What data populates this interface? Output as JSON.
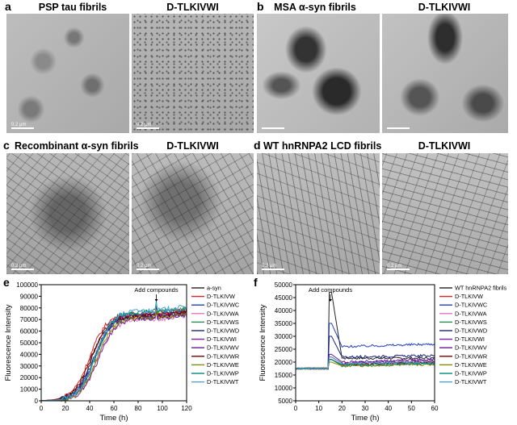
{
  "panels": {
    "a": {
      "letter": "a",
      "titles": [
        "PSP tau fibrils",
        "D-TLKIVWI"
      ]
    },
    "b": {
      "letter": "b",
      "titles": [
        "MSA α-syn fibrils",
        "D-TLKIVWI"
      ]
    },
    "c": {
      "letter": "c",
      "titles": [
        "Recombinant α-syn fibrils",
        "D-TLKIVWI"
      ]
    },
    "d": {
      "letter": "d",
      "titles": [
        "WT hnRNPA2 LCD fibrils",
        "D-TLKIVWI"
      ]
    },
    "e": {
      "letter": "e"
    },
    "f": {
      "letter": "f"
    }
  },
  "scale_label": "0.2 μm",
  "chart_data": [
    {
      "type": "line",
      "panel": "e",
      "xlabel": "Time (h)",
      "ylabel": "Fluorescence Intensity",
      "xlim": [
        0,
        120
      ],
      "ylim": [
        0,
        100000
      ],
      "xticks": [
        0,
        20,
        40,
        60,
        80,
        100,
        120
      ],
      "yticks": [
        0,
        10000,
        20000,
        30000,
        40000,
        50000,
        60000,
        70000,
        80000,
        90000,
        100000
      ],
      "annotation": {
        "text": "Add compounds",
        "x": 95
      },
      "legend_position": "right",
      "series": [
        {
          "name": "a-syn",
          "color": "#222222",
          "mid": 42,
          "plateau": 74000
        },
        {
          "name": "D-TLKIVW",
          "color": "#d62728",
          "mid": 40,
          "plateau": 75000
        },
        {
          "name": "D-TLKIVWC",
          "color": "#1f3fbf",
          "mid": 44,
          "plateau": 73000
        },
        {
          "name": "D-TLKIVWA",
          "color": "#e377c2",
          "mid": 46,
          "plateau": 70000
        },
        {
          "name": "D-TLKIVWS",
          "color": "#2e8b57",
          "mid": 45,
          "plateau": 76000
        },
        {
          "name": "D-TLKIVWD",
          "color": "#1a237e",
          "mid": 43,
          "plateau": 72000
        },
        {
          "name": "D-TLKIVWI",
          "color": "#7b1fa2",
          "mid": 47,
          "plateau": 71000
        },
        {
          "name": "D-TLKIVWV",
          "color": "#6a1b9a",
          "mid": 44,
          "plateau": 74000
        },
        {
          "name": "D-TLKIVWR",
          "color": "#7f0000",
          "mid": 41,
          "plateau": 73000
        },
        {
          "name": "D-TLKIVWE",
          "color": "#8b8b00",
          "mid": 46,
          "plateau": 72000
        },
        {
          "name": "D-TLKIVWP",
          "color": "#00897b",
          "mid": 45,
          "plateau": 77000
        },
        {
          "name": "D-TLKIVWT",
          "color": "#4fa3d1",
          "mid": 45,
          "plateau": 78000
        }
      ]
    },
    {
      "type": "line",
      "panel": "f",
      "xlabel": "Time (h)",
      "ylabel": "Fluorescence Intensity",
      "xlim": [
        0,
        60
      ],
      "ylim": [
        5000,
        50000
      ],
      "xticks": [
        0,
        10,
        20,
        30,
        40,
        50,
        60
      ],
      "yticks": [
        5000,
        10000,
        15000,
        20000,
        25000,
        30000,
        35000,
        40000,
        45000,
        50000
      ],
      "annotation": {
        "text": "Add compounds",
        "x": 15
      },
      "legend_position": "right",
      "series": [
        {
          "name": "WT hnRNPA2 fibrils",
          "color": "#222222",
          "base": 17500,
          "peak": 47000,
          "settle": 21500,
          "end": 21500
        },
        {
          "name": "D-TLKIVW",
          "color": "#d62728",
          "base": 17500,
          "peak": 22000,
          "settle": 19500,
          "end": 20000
        },
        {
          "name": "D-TLKIVWC",
          "color": "#1f3fbf",
          "base": 17500,
          "peak": 35000,
          "settle": 26000,
          "end": 27000
        },
        {
          "name": "D-TLKIVWA",
          "color": "#e377c2",
          "base": 17500,
          "peak": 21000,
          "settle": 19000,
          "end": 19500
        },
        {
          "name": "D-TLKIVWS",
          "color": "#2e8b57",
          "base": 17500,
          "peak": 21000,
          "settle": 18500,
          "end": 19500
        },
        {
          "name": "D-TLKIVWD",
          "color": "#1a237e",
          "base": 17500,
          "peak": 30000,
          "settle": 22000,
          "end": 22500
        },
        {
          "name": "D-TLKIVWI",
          "color": "#7b1fa2",
          "base": 17500,
          "peak": 22000,
          "settle": 19500,
          "end": 20500
        },
        {
          "name": "D-TLKIVWV",
          "color": "#6a1b9a",
          "base": 17500,
          "peak": 23000,
          "settle": 20000,
          "end": 21000
        },
        {
          "name": "D-TLKIVWR",
          "color": "#7f0000",
          "base": 17500,
          "peak": 21000,
          "settle": 19000,
          "end": 20000
        },
        {
          "name": "D-TLKIVWE",
          "color": "#8b8b00",
          "base": 17500,
          "peak": 20000,
          "settle": 18500,
          "end": 19000
        },
        {
          "name": "D-TLKIVWP",
          "color": "#00897b",
          "base": 17500,
          "peak": 21000,
          "settle": 19000,
          "end": 19500
        },
        {
          "name": "D-TLKIVWT",
          "color": "#4fa3d1",
          "base": 17500,
          "peak": 22000,
          "settle": 19500,
          "end": 20000
        }
      ]
    }
  ]
}
